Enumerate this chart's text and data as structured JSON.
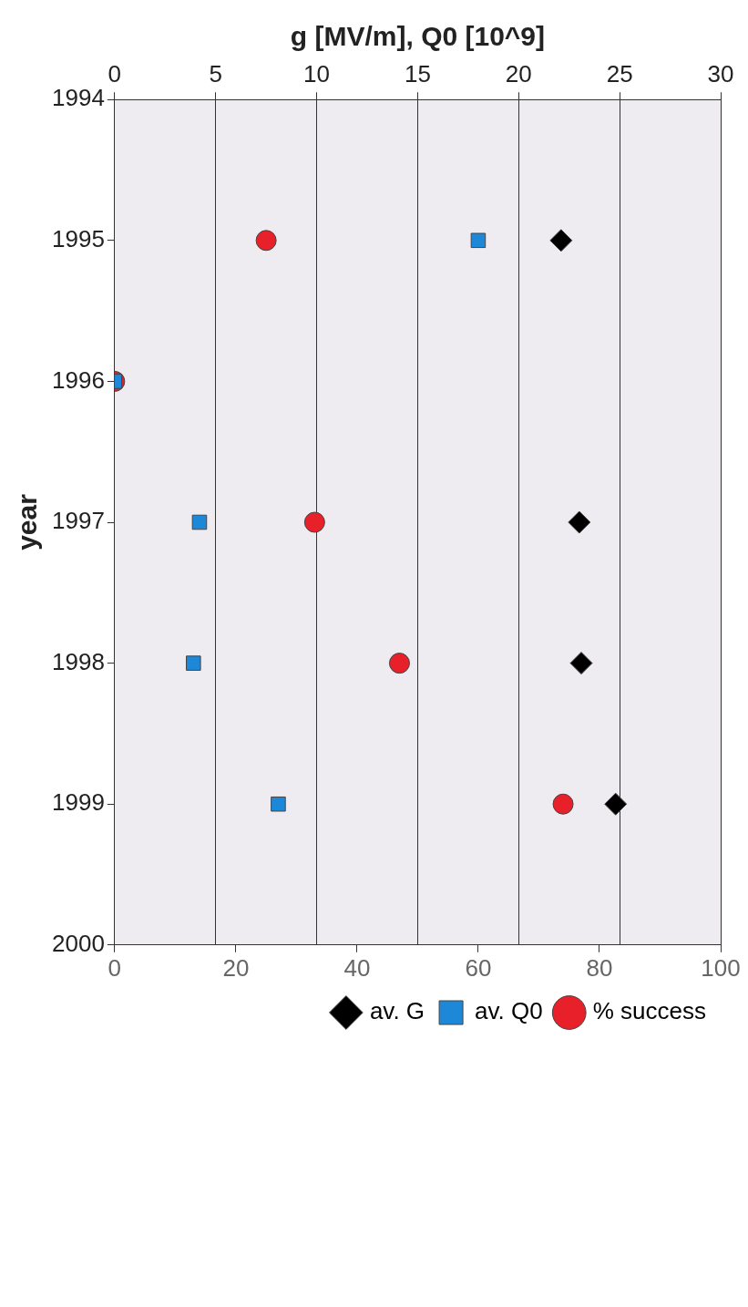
{
  "chart_data": {
    "type": "scatter",
    "x2label": "g [MV/m], Q0 [10^9]",
    "ylabel": "year",
    "x2lim": [
      0,
      30
    ],
    "x2ticks": [
      0,
      5,
      10,
      15,
      20,
      25,
      30
    ],
    "xlim": [
      0,
      100
    ],
    "xticks": [
      0,
      20,
      40,
      60,
      80,
      100
    ],
    "ylim": [
      2000,
      1994
    ],
    "yticks": [
      1994,
      1995,
      1996,
      1997,
      1998,
      1999,
      2000
    ],
    "grid": "x2",
    "legend": "bottom right",
    "series": [
      {
        "name": "av. G",
        "color": "#000000",
        "marker": "diamond",
        "axis": "x2",
        "x": [
          22.1,
          23.0,
          23.1,
          24.8
        ],
        "values": [
          1995,
          1997,
          1998,
          1999
        ]
      },
      {
        "name": "av. Q0",
        "color": "#1e88d8",
        "marker": "square",
        "axis": "x2",
        "x": [
          18.0,
          0,
          4.2,
          3.9,
          8.1
        ],
        "values": [
          1995,
          1996,
          1997,
          1998,
          1999
        ]
      },
      {
        "name": "% success",
        "color": "#e8202a",
        "marker": "circle",
        "x": [
          25,
          0,
          33,
          47,
          74
        ],
        "values": [
          1995,
          1996,
          1997,
          1998,
          1999
        ]
      }
    ]
  }
}
